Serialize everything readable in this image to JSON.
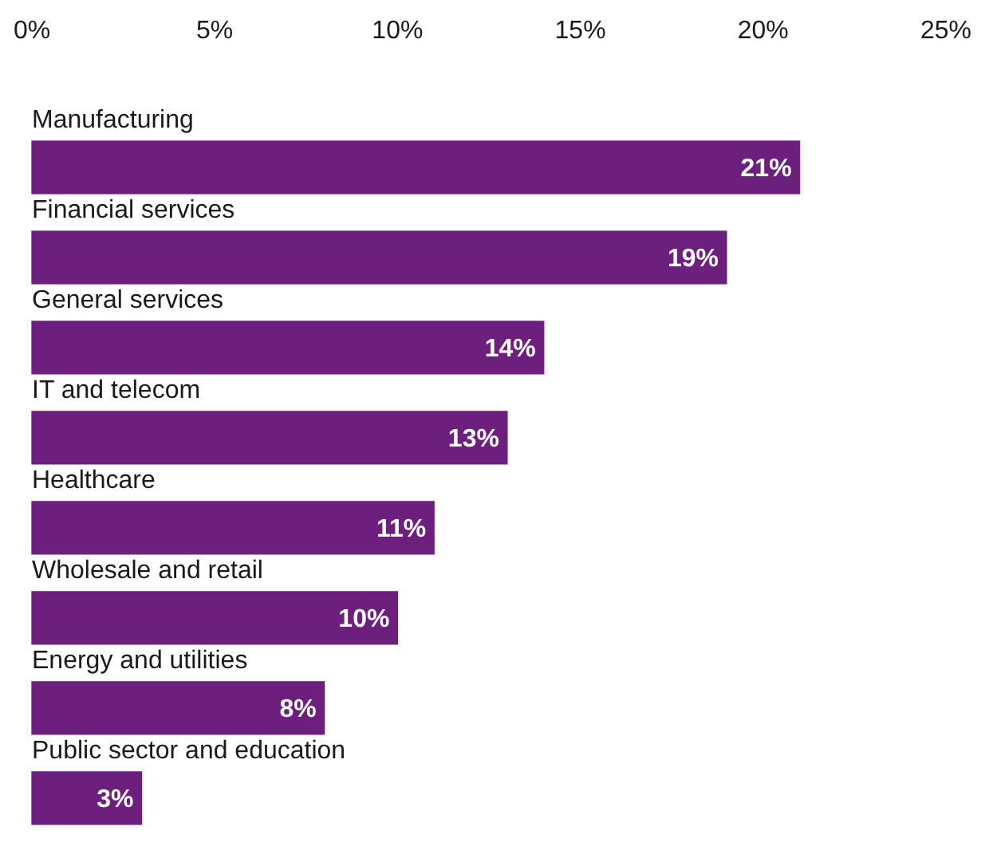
{
  "chart_data": {
    "type": "bar",
    "orientation": "horizontal",
    "categories": [
      "Manufacturing",
      "Financial services",
      "General services",
      "IT and telecom",
      "Healthcare",
      "Wholesale and retail",
      "Energy and utilities",
      "Public sector and education"
    ],
    "values": [
      21,
      19,
      14,
      13,
      11,
      10,
      8,
      3
    ],
    "value_labels": [
      "21%",
      "19%",
      "14%",
      "13%",
      "11%",
      "10%",
      "8%",
      "3%"
    ],
    "color": "#6d1f7e",
    "xlim": [
      0,
      25
    ],
    "xticks": [
      {
        "value": 0,
        "label": "0%"
      },
      {
        "value": 5,
        "label": "5%"
      },
      {
        "value": 10,
        "label": "10%"
      },
      {
        "value": 15,
        "label": "15%"
      },
      {
        "value": 20,
        "label": "20%"
      },
      {
        "value": 25,
        "label": "25%"
      }
    ]
  }
}
